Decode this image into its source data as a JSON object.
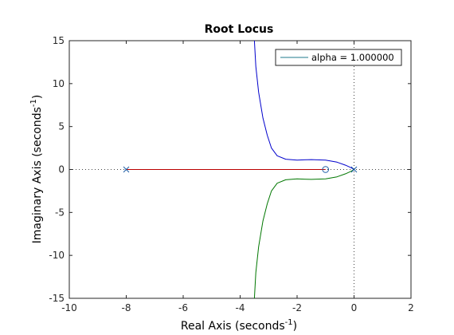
{
  "chart_data": {
    "type": "line",
    "title": "Root Locus",
    "xlabel": {
      "text": "Real Axis (seconds",
      "sup": "-1",
      "close": ")"
    },
    "ylabel": {
      "text": "Imaginary Axis (seconds",
      "sup": "-1",
      "close": ")"
    },
    "xlim": [
      -10,
      2
    ],
    "ylim": [
      -15,
      15
    ],
    "xticks": [
      -10,
      -8,
      -6,
      -4,
      -2,
      0,
      2
    ],
    "yticks": [
      -15,
      -10,
      -5,
      0,
      5,
      10,
      15
    ],
    "grid": false,
    "legend": {
      "placement": "top-right",
      "entries": [
        "alpha = 1.000000"
      ]
    },
    "colors": {
      "legend_line": "#1f7a8c",
      "blue": "#0000cc",
      "green": "#007700",
      "red": "#bb0000",
      "axis": "#262626"
    },
    "series": [
      {
        "color": "blue",
        "points": [
          [
            -3.5,
            15
          ],
          [
            -3.45,
            12
          ],
          [
            -3.35,
            9
          ],
          [
            -3.2,
            6
          ],
          [
            -3.05,
            4
          ],
          [
            -2.9,
            2.5
          ],
          [
            -2.7,
            1.6
          ],
          [
            -2.4,
            1.2
          ],
          [
            -2.0,
            1.1
          ],
          [
            -1.5,
            1.15
          ],
          [
            -1.0,
            1.1
          ],
          [
            -0.6,
            0.85
          ],
          [
            -0.3,
            0.5
          ],
          [
            -0.1,
            0.2
          ],
          [
            0,
            0
          ]
        ]
      },
      {
        "color": "green",
        "points": [
          [
            -3.5,
            -15
          ],
          [
            -3.45,
            -12
          ],
          [
            -3.35,
            -9
          ],
          [
            -3.2,
            -6
          ],
          [
            -3.05,
            -4
          ],
          [
            -2.9,
            -2.5
          ],
          [
            -2.7,
            -1.6
          ],
          [
            -2.4,
            -1.2
          ],
          [
            -2.0,
            -1.1
          ],
          [
            -1.5,
            -1.15
          ],
          [
            -1.0,
            -1.1
          ],
          [
            -0.6,
            -0.85
          ],
          [
            -0.3,
            -0.5
          ],
          [
            -0.1,
            -0.2
          ],
          [
            0,
            0
          ]
        ]
      },
      {
        "color": "red",
        "points": [
          [
            -8,
            0
          ],
          [
            -1,
            0
          ]
        ]
      }
    ],
    "poles": [
      [
        -8,
        0
      ],
      [
        0,
        0
      ]
    ],
    "zeros": [
      [
        -1,
        0
      ]
    ]
  }
}
